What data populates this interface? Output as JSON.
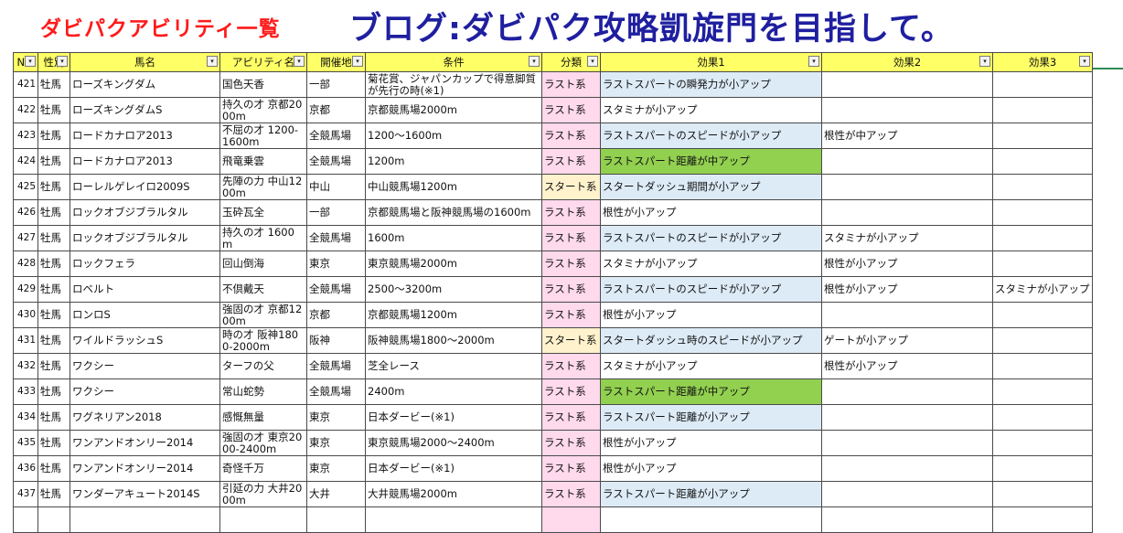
{
  "banner": {
    "left_title": "ダビパクアビリティ一覧",
    "right_title": "ブログ:ダビパク攻略凱旋門を目指して。"
  },
  "colors": {
    "last": "#ffd9ec",
    "start": "#fff2cc",
    "blue": "#ddebf7",
    "green": "#92d050",
    "header": "#ffff66"
  },
  "table": {
    "headers": [
      "No.",
      "性別",
      "馬名",
      "アビリティ名",
      "開催地",
      "条件",
      "分類",
      "効果1",
      "効果2",
      "効果3"
    ],
    "filter_icon": "▾",
    "rows": [
      {
        "no": "421",
        "sex": "牡馬",
        "horse": "ローズキングダム",
        "ability": "国色天香",
        "venue": "一部",
        "cond": "菊花賞、ジャパンカップで得意脚質が先行の時(※1)",
        "cat": "ラスト系",
        "cat_c": "last",
        "e1": "ラストスパートの瞬発力が小アップ",
        "e1_c": "blue",
        "e2": "",
        "e2_c": "white",
        "e3": "",
        "e3_c": "white"
      },
      {
        "no": "422",
        "sex": "牡馬",
        "horse": "ローズキングダムS",
        "ability": "持久の才 京都2000m",
        "venue": "京都",
        "cond": "京都競馬場2000m",
        "cat": "ラスト系",
        "cat_c": "last",
        "e1": "スタミナが小アップ",
        "e1_c": "white",
        "e2": "",
        "e2_c": "white",
        "e3": "",
        "e3_c": "white"
      },
      {
        "no": "423",
        "sex": "牡馬",
        "horse": "ロードカナロア2013",
        "ability": "不屈の才 1200-1600m",
        "venue": "全競馬場",
        "cond": "1200～1600m",
        "cat": "ラスト系",
        "cat_c": "last",
        "e1": "ラストスパートのスピードが小アップ",
        "e1_c": "blue",
        "e2": "根性が中アップ",
        "e2_c": "white",
        "e3": "",
        "e3_c": "white"
      },
      {
        "no": "424",
        "sex": "牡馬",
        "horse": "ロードカナロア2013",
        "ability": "飛竜乗雲",
        "venue": "全競馬場",
        "cond": "1200m",
        "cat": "ラスト系",
        "cat_c": "last",
        "e1": "ラストスパート距離が中アップ",
        "e1_c": "green",
        "e2": "",
        "e2_c": "white",
        "e3": "",
        "e3_c": "white"
      },
      {
        "no": "425",
        "sex": "牡馬",
        "horse": "ローレルゲレイロ2009S",
        "ability": "先陣の力 中山1200m",
        "venue": "中山",
        "cond": "中山競馬場1200m",
        "cat": "スタート系",
        "cat_c": "start",
        "e1": "スタートダッシュ期間が小アップ",
        "e1_c": "blue",
        "e2": "",
        "e2_c": "white",
        "e3": "",
        "e3_c": "white"
      },
      {
        "no": "426",
        "sex": "牡馬",
        "horse": "ロックオブジブラルタル",
        "ability": "玉砕瓦全",
        "venue": "一部",
        "cond": "京都競馬場と阪神競馬場の1600m",
        "cat": "ラスト系",
        "cat_c": "last",
        "e1": "根性が小アップ",
        "e1_c": "white",
        "e2": "",
        "e2_c": "white",
        "e3": "",
        "e3_c": "white"
      },
      {
        "no": "427",
        "sex": "牡馬",
        "horse": "ロックオブジブラルタル",
        "ability": "持久の才 1600m",
        "venue": "全競馬場",
        "cond": "1600m",
        "cat": "ラスト系",
        "cat_c": "last",
        "e1": "ラストスパートのスピードが小アップ",
        "e1_c": "blue",
        "e2": "スタミナが小アップ",
        "e2_c": "white",
        "e3": "",
        "e3_c": "white"
      },
      {
        "no": "428",
        "sex": "牡馬",
        "horse": "ロックフェラ",
        "ability": "回山倒海",
        "venue": "東京",
        "cond": "東京競馬場2000m",
        "cat": "ラスト系",
        "cat_c": "last",
        "e1": "スタミナが小アップ",
        "e1_c": "white",
        "e2": "根性が小アップ",
        "e2_c": "white",
        "e3": "",
        "e3_c": "white"
      },
      {
        "no": "429",
        "sex": "牡馬",
        "horse": "ロベルト",
        "ability": "不倶戴天",
        "venue": "全競馬場",
        "cond": "2500～3200m",
        "cat": "ラスト系",
        "cat_c": "last",
        "e1": "ラストスパートのスピードが小アップ",
        "e1_c": "blue",
        "e2": "根性が小アップ",
        "e2_c": "white",
        "e3": "スタミナが小アップ",
        "e3_c": "white"
      },
      {
        "no": "430",
        "sex": "牡馬",
        "horse": "ロンロS",
        "ability": "強固の才 京都1200m",
        "venue": "京都",
        "cond": "京都競馬場1200m",
        "cat": "ラスト系",
        "cat_c": "last",
        "e1": "根性が小アップ",
        "e1_c": "white",
        "e2": "",
        "e2_c": "white",
        "e3": "",
        "e3_c": "white"
      },
      {
        "no": "431",
        "sex": "牡馬",
        "horse": "ワイルドラッシュS",
        "ability": "時の才 阪神1800-2000m",
        "venue": "阪神",
        "cond": "阪神競馬場1800～2000m",
        "cat": "スタート系",
        "cat_c": "start",
        "e1": "スタートダッシュ時のスピードが小アップ",
        "e1_c": "blue",
        "e2": "ゲートが小アップ",
        "e2_c": "white",
        "e3": "",
        "e3_c": "white"
      },
      {
        "no": "432",
        "sex": "牡馬",
        "horse": "ワクシー",
        "ability": "ターフの父",
        "venue": "全競馬場",
        "cond": "芝全レース",
        "cat": "ラスト系",
        "cat_c": "last",
        "e1": "スタミナが小アップ",
        "e1_c": "white",
        "e2": "根性が小アップ",
        "e2_c": "white",
        "e3": "",
        "e3_c": "white"
      },
      {
        "no": "433",
        "sex": "牡馬",
        "horse": "ワクシー",
        "ability": "常山蛇勢",
        "venue": "全競馬場",
        "cond": "2400m",
        "cat": "ラスト系",
        "cat_c": "last",
        "e1": "ラストスパート距離が中アップ",
        "e1_c": "green",
        "e2": "",
        "e2_c": "white",
        "e3": "",
        "e3_c": "white"
      },
      {
        "no": "434",
        "sex": "牡馬",
        "horse": "ワグネリアン2018",
        "ability": "感慨無量",
        "venue": "東京",
        "cond": "日本ダービー(※1)",
        "cat": "ラスト系",
        "cat_c": "last",
        "e1": "ラストスパート距離が小アップ",
        "e1_c": "blue",
        "e2": "",
        "e2_c": "white",
        "e3": "",
        "e3_c": "white"
      },
      {
        "no": "435",
        "sex": "牡馬",
        "horse": "ワンアンドオンリー2014",
        "ability": "強固の才 東京2000-2400m",
        "venue": "東京",
        "cond": "東京競馬場2000～2400m",
        "cat": "ラスト系",
        "cat_c": "last",
        "e1": "根性が小アップ",
        "e1_c": "white",
        "e2": "",
        "e2_c": "white",
        "e3": "",
        "e3_c": "white"
      },
      {
        "no": "436",
        "sex": "牡馬",
        "horse": "ワンアンドオンリー2014",
        "ability": "奇怪千万",
        "venue": "東京",
        "cond": "日本ダービー(※1)",
        "cat": "ラスト系",
        "cat_c": "last",
        "e1": "根性が小アップ",
        "e1_c": "white",
        "e2": "",
        "e2_c": "white",
        "e3": "",
        "e3_c": "white"
      },
      {
        "no": "437",
        "sex": "牡馬",
        "horse": "ワンダーアキュート2014S",
        "ability": "引延の力 大井2000m",
        "venue": "大井",
        "cond": "大井競馬場2000m",
        "cat": "ラスト系",
        "cat_c": "last",
        "e1": "ラストスパート距離が小アップ",
        "e1_c": "blue",
        "e2": "",
        "e2_c": "white",
        "e3": "",
        "e3_c": "white"
      },
      {
        "no": "",
        "sex": "",
        "horse": "",
        "ability": "",
        "venue": "",
        "cond": "",
        "cat": "",
        "cat_c": "last",
        "e1": "",
        "e1_c": "white",
        "e2": "",
        "e2_c": "white",
        "e3": "",
        "e3_c": "white"
      }
    ]
  }
}
